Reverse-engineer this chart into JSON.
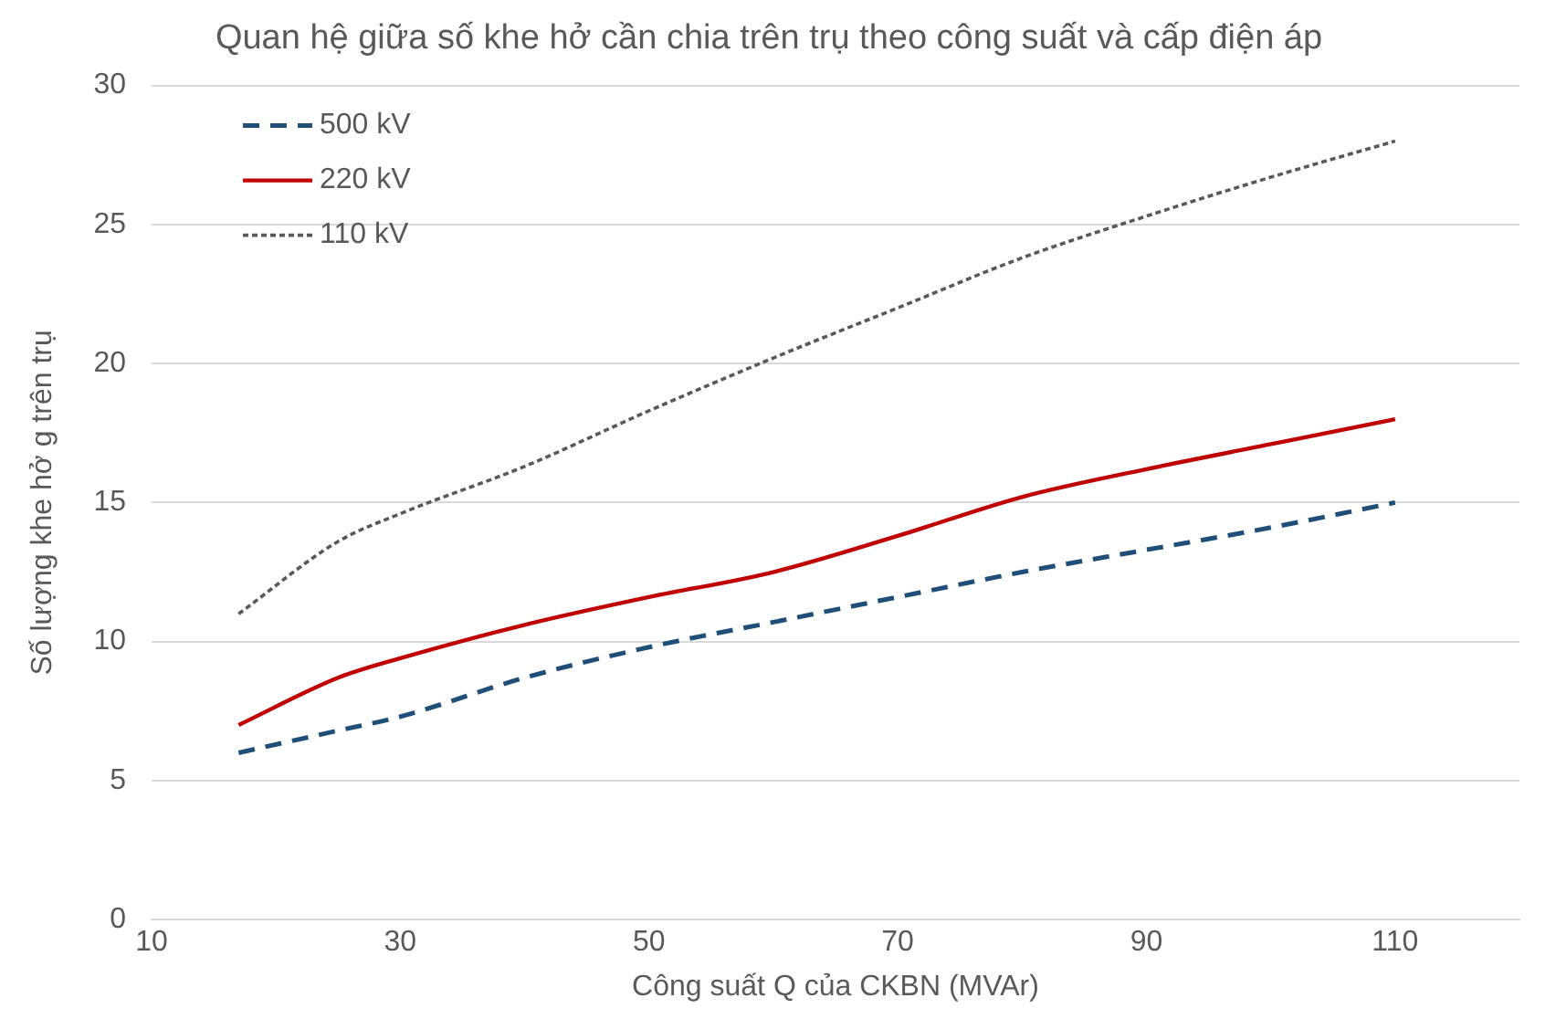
{
  "chart_data": {
    "type": "line",
    "title": "Quan hệ giữa số khe hở cần chia trên trụ theo công suất và cấp điện áp",
    "xlabel": "Công suất Q của CKBN (MVAr)",
    "ylabel": "Số lượng khe hở g trên trụ",
    "x": [
      17,
      25,
      30,
      40,
      50,
      60,
      70,
      80,
      90,
      100,
      110
    ],
    "series": [
      {
        "name": "500 kV",
        "color": "#1f4e79",
        "line_style": "dashed",
        "values": [
          6,
          6.8,
          7.3,
          8.7,
          9.8,
          10.7,
          11.6,
          12.5,
          13.3,
          14.1,
          15
        ]
      },
      {
        "name": "220 kV",
        "color": "#c00000",
        "line_style": "solid",
        "values": [
          7,
          8.7,
          9.4,
          10.6,
          11.6,
          12.5,
          13.8,
          15.2,
          16.2,
          17.1,
          18
        ]
      },
      {
        "name": "110 kV",
        "color": "#595959",
        "line_style": "dotted",
        "values": [
          11,
          13.6,
          14.6,
          16.3,
          18.3,
          20.2,
          22,
          23.8,
          25.3,
          26.7,
          28
        ]
      }
    ],
    "xlim": [
      10,
      120
    ],
    "xticks": [
      10,
      30,
      50,
      70,
      90,
      110
    ],
    "ylim": [
      0,
      30
    ],
    "yticks": [
      0,
      5,
      10,
      15,
      20,
      25,
      30
    ],
    "grid": "y",
    "legend": "top left",
    "marker": "none"
  }
}
